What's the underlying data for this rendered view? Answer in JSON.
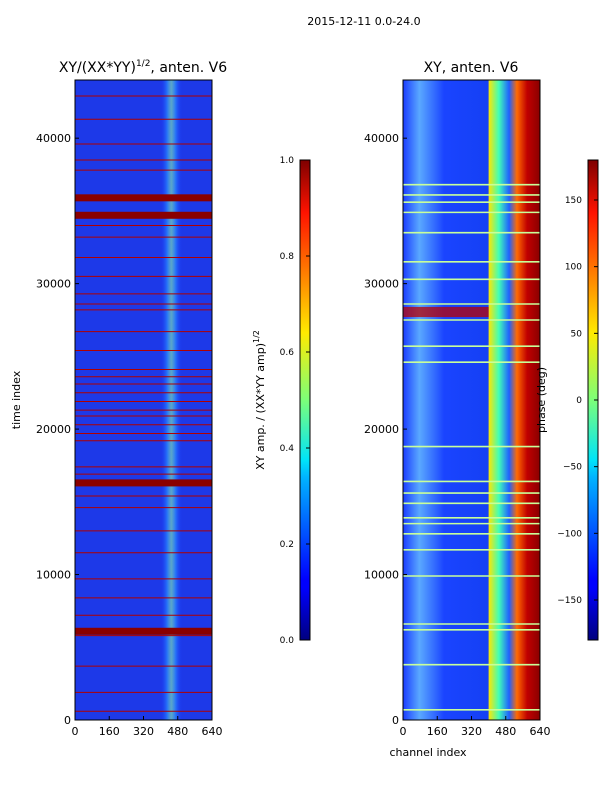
{
  "suptitle": "2015-12-11 0.0-24.0",
  "chart_data": [
    {
      "type": "heatmap",
      "title_main": "XY/(XX*YY)",
      "title_exp": "1/2",
      "title_rest": ", anten. V6",
      "xlabel": "",
      "ylabel": "time index",
      "x_ticks": [
        0,
        160,
        320,
        480,
        640
      ],
      "y_ticks": [
        0,
        10000,
        20000,
        30000,
        40000
      ],
      "xlim": [
        0,
        640
      ],
      "ylim": [
        0,
        44000
      ],
      "bright_band_channels": [
        400,
        500
      ],
      "saturated_rows": [
        6100,
        16300,
        34700,
        35900
      ],
      "flag_rows": [
        600,
        1900,
        3700,
        5800,
        7200,
        8400,
        9700,
        11500,
        13000,
        14600,
        15400,
        16900,
        17400,
        19200,
        19700,
        20300,
        20900,
        21300,
        21900,
        22500,
        23100,
        23600,
        24100,
        25400,
        26700,
        28200,
        28600,
        29300,
        30500,
        31800,
        33200,
        34000,
        37800,
        38500,
        39600,
        41300,
        42900
      ],
      "colorbar": {
        "label_main": "XY amp. / (XX*YY amp)",
        "label_exp": "1/2",
        "ticks": [
          "0.0",
          "0.2",
          "0.4",
          "0.6",
          "0.8",
          "1.0"
        ],
        "tick_values": [
          0.0,
          0.2,
          0.4,
          0.6,
          0.8,
          1.0
        ],
        "range": [
          0,
          1
        ]
      }
    },
    {
      "type": "heatmap",
      "title": "XY, anten. V6",
      "xlabel": "channel index",
      "ylabel": "",
      "x_ticks": [
        0,
        160,
        320,
        480,
        640
      ],
      "y_ticks": [
        0,
        10000,
        20000,
        30000,
        40000
      ],
      "xlim": [
        0,
        640
      ],
      "ylim": [
        0,
        44000
      ],
      "phase_band_channels": [
        400,
        640
      ],
      "bright_rows": [
        700,
        3800,
        6200,
        6600,
        9900,
        11700,
        12800,
        13500,
        13900,
        14900,
        15600,
        16400,
        18800,
        24600,
        25700,
        27500,
        28600,
        30300,
        31500,
        33500,
        34900,
        35600,
        36100,
        36800
      ],
      "colorbar": {
        "label": "phase (deg)",
        "ticks": [
          "150",
          "100",
          "50",
          "0",
          "−50",
          "−100",
          "−150"
        ],
        "tick_values": [
          150,
          100,
          50,
          0,
          -50,
          -100,
          -150
        ],
        "range": [
          -180,
          180
        ]
      }
    }
  ]
}
